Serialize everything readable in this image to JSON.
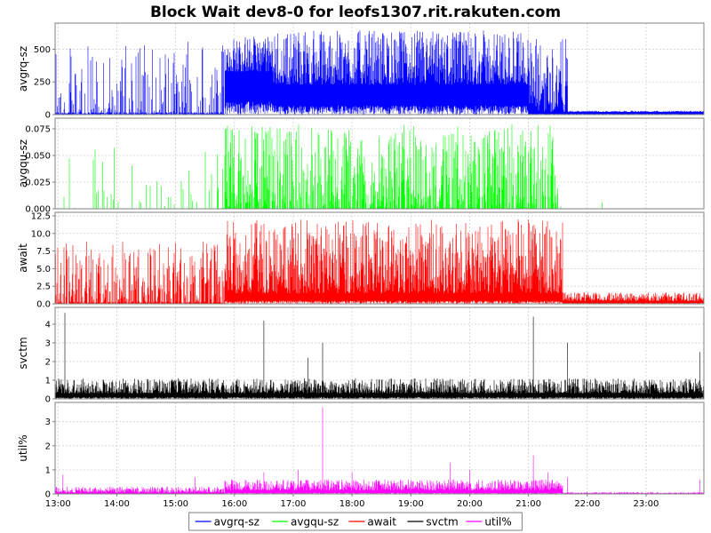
{
  "chart_data": {
    "type": "line",
    "title": "Block Wait dev8-0 for leofs1307.rit.rakuten.com",
    "x_ticks": [
      "13:00",
      "14:00",
      "15:00",
      "16:00",
      "17:00",
      "18:00",
      "19:00",
      "20:00",
      "21:00",
      "22:00",
      "23:00"
    ],
    "x_range": [
      "12:57",
      "23:59"
    ],
    "grid": true,
    "legend_placement": "bottom-center",
    "panels": [
      {
        "name": "avgrq-sz",
        "ylabel": "avgrq-sz",
        "color": "#0000ff",
        "ylim": [
          0,
          700
        ],
        "yticks": [
          0,
          250,
          500
        ],
        "ytick_labels": [
          "0",
          "250",
          "500"
        ],
        "segments": [
          {
            "start": "12:57",
            "end": "15:50",
            "baseline": 20,
            "peak": 560,
            "density": 0.35
          },
          {
            "start": "15:50",
            "end": "16:40",
            "baseline": 330,
            "peak": 600,
            "density": 1.0
          },
          {
            "start": "16:40",
            "end": "21:00",
            "baseline": 230,
            "peak": 650,
            "density": 1.0
          },
          {
            "start": "21:00",
            "end": "21:40",
            "baseline": 20,
            "peak": 580,
            "density": 1.0
          },
          {
            "start": "21:40",
            "end": "23:59",
            "baseline": 20,
            "peak": 30,
            "density": 1.0
          }
        ]
      },
      {
        "name": "avgqu-sz",
        "ylabel": "avgqu-sz",
        "color": "#00ff00",
        "ylim": [
          0,
          0.085
        ],
        "yticks": [
          0,
          0.025,
          0.05,
          0.075
        ],
        "ytick_labels": [
          "0.000",
          "0.025",
          "0.050",
          "0.075"
        ],
        "segments": [
          {
            "start": "12:57",
            "end": "15:50",
            "baseline": 0,
            "peak": 0.06,
            "density": 0.08
          },
          {
            "start": "15:50",
            "end": "21:30",
            "baseline": 0,
            "peak": 0.08,
            "density": 0.7
          },
          {
            "start": "21:30",
            "end": "23:59",
            "baseline": 0,
            "peak": 0.01,
            "density": 0.01
          }
        ]
      },
      {
        "name": "await",
        "ylabel": "await",
        "color": "#ff0000",
        "ylim": [
          0,
          13
        ],
        "yticks": [
          0,
          2.5,
          5,
          7.5,
          10,
          12.5
        ],
        "ytick_labels": [
          "0.0",
          "2.5",
          "5.0",
          "7.5",
          "10.0",
          "12.5"
        ],
        "segments": [
          {
            "start": "12:57",
            "end": "15:50",
            "baseline": 0.3,
            "peak": 9.0,
            "density": 0.6
          },
          {
            "start": "15:50",
            "end": "21:35",
            "baseline": 1.5,
            "peak": 12.0,
            "density": 1.0
          },
          {
            "start": "21:35",
            "end": "23:59",
            "baseline": 0.4,
            "peak": 1.6,
            "density": 1.0
          }
        ]
      },
      {
        "name": "svctm",
        "ylabel": "svctm",
        "color": "#000000",
        "ylim": [
          0,
          4.9
        ],
        "yticks": [
          0,
          1,
          2,
          3,
          4
        ],
        "ytick_labels": [
          "0",
          "1",
          "2",
          "3",
          "4"
        ],
        "segments": [
          {
            "start": "12:57",
            "end": "23:59",
            "baseline": 0.3,
            "peak": 1.1,
            "density": 1.0
          }
        ],
        "spikes": [
          {
            "x": "13:07",
            "y": 4.6
          },
          {
            "x": "16:30",
            "y": 4.2
          },
          {
            "x": "17:30",
            "y": 3.0
          },
          {
            "x": "17:15",
            "y": 2.2
          },
          {
            "x": "21:05",
            "y": 4.4
          },
          {
            "x": "21:40",
            "y": 3.0
          },
          {
            "x": "23:55",
            "y": 2.5
          }
        ]
      },
      {
        "name": "util%",
        "ylabel": "util%",
        "color": "#ff00ff",
        "ylim": [
          0,
          3.8
        ],
        "yticks": [
          0,
          1,
          2,
          3
        ],
        "ytick_labels": [
          "0",
          "1",
          "2",
          "3"
        ],
        "segments": [
          {
            "start": "12:57",
            "end": "15:50",
            "baseline": 0.05,
            "peak": 0.3,
            "density": 1.0
          },
          {
            "start": "15:50",
            "end": "21:35",
            "baseline": 0.15,
            "peak": 0.6,
            "density": 1.0
          },
          {
            "start": "21:35",
            "end": "23:59",
            "baseline": 0.02,
            "peak": 0.08,
            "density": 1.0
          }
        ],
        "spikes": [
          {
            "x": "13:05",
            "y": 0.8
          },
          {
            "x": "15:20",
            "y": 0.7
          },
          {
            "x": "16:30",
            "y": 0.9
          },
          {
            "x": "17:30",
            "y": 3.6
          },
          {
            "x": "17:05",
            "y": 1.0
          },
          {
            "x": "18:00",
            "y": 0.9
          },
          {
            "x": "19:40",
            "y": 1.3
          },
          {
            "x": "20:00",
            "y": 1.0
          },
          {
            "x": "21:05",
            "y": 1.6
          },
          {
            "x": "21:20",
            "y": 0.9
          },
          {
            "x": "21:40",
            "y": 0.7
          },
          {
            "x": "23:55",
            "y": 0.6
          }
        ]
      }
    ],
    "legend": [
      "avgrq-sz",
      "avgqu-sz",
      "await",
      "svctm",
      "util%"
    ]
  }
}
